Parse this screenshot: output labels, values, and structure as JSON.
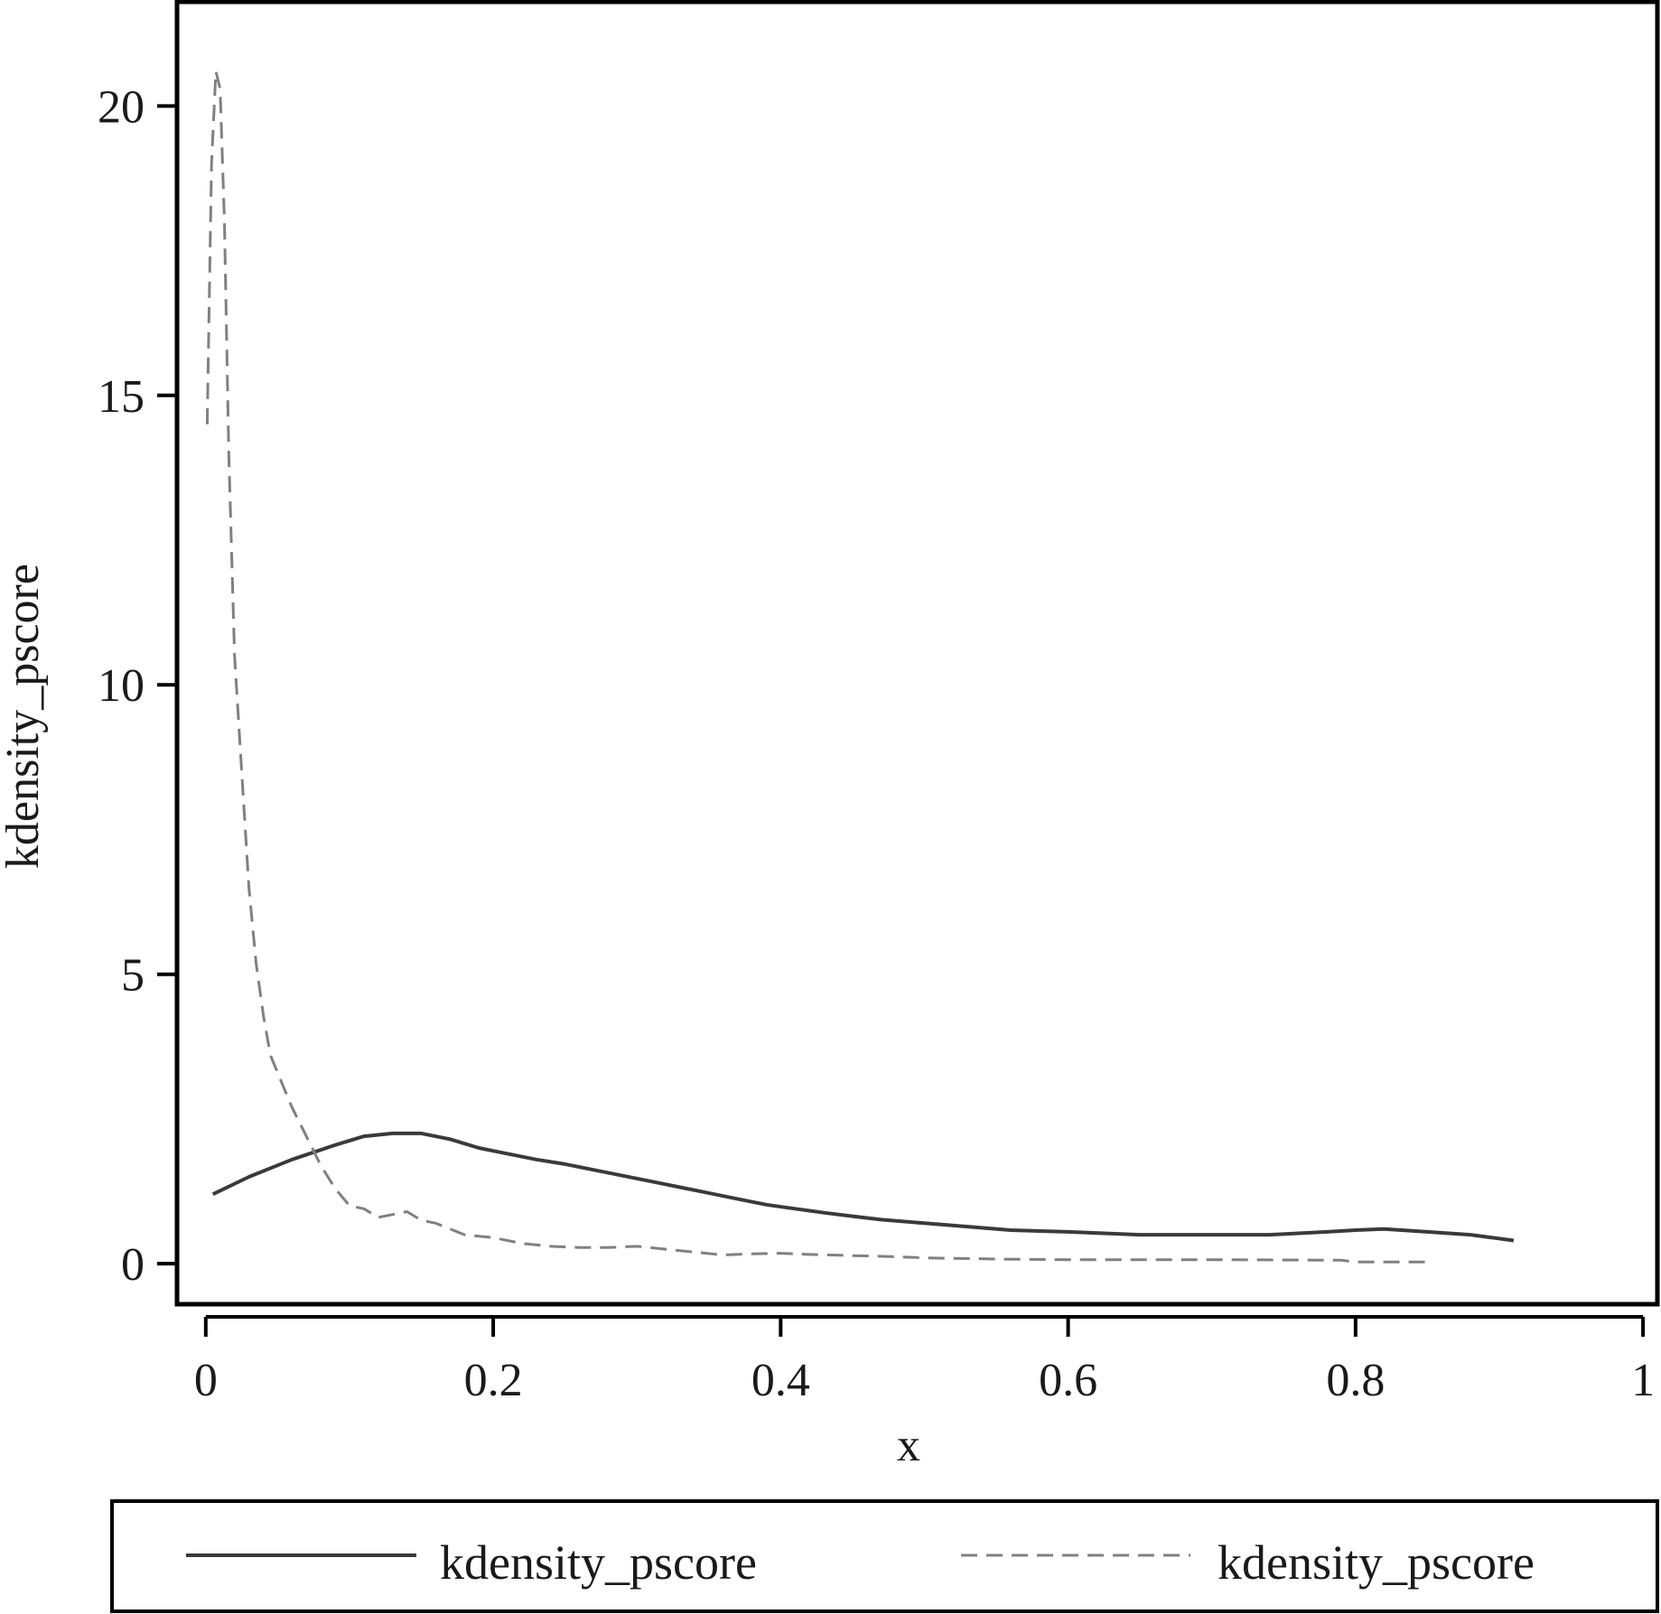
{
  "chart_data": {
    "type": "line",
    "title": "",
    "xlabel": "x",
    "ylabel": "kdensity_pscore",
    "xlim": [
      -0.02,
      1.01
    ],
    "ylim": [
      -0.7,
      21.8
    ],
    "x_ticks": [
      0,
      0.2,
      0.4,
      0.6,
      0.8,
      1
    ],
    "x_tick_labels": [
      "0",
      "0.2",
      "0.4",
      "0.6",
      "0.8",
      "1"
    ],
    "y_ticks": [
      0,
      5,
      10,
      15,
      20
    ],
    "y_tick_labels": [
      "0",
      "5",
      "10",
      "15",
      "20"
    ],
    "grid": false,
    "legend_position": "bottom",
    "series": [
      {
        "name": "kdensity_pscore",
        "color": "#3a3a3a",
        "style": "solid",
        "x": [
          0.005,
          0.03,
          0.06,
          0.09,
          0.11,
          0.13,
          0.15,
          0.17,
          0.19,
          0.21,
          0.23,
          0.25,
          0.27,
          0.29,
          0.31,
          0.33,
          0.35,
          0.37,
          0.39,
          0.41,
          0.43,
          0.45,
          0.47,
          0.5,
          0.53,
          0.56,
          0.6,
          0.65,
          0.7,
          0.74,
          0.78,
          0.8,
          0.82,
          0.85,
          0.88,
          0.91
        ],
        "y": [
          1.2,
          1.5,
          1.8,
          2.05,
          2.2,
          2.25,
          2.25,
          2.15,
          2.0,
          1.9,
          1.8,
          1.72,
          1.62,
          1.52,
          1.42,
          1.32,
          1.22,
          1.12,
          1.02,
          0.95,
          0.88,
          0.82,
          0.76,
          0.7,
          0.64,
          0.58,
          0.55,
          0.5,
          0.5,
          0.5,
          0.55,
          0.58,
          0.6,
          0.55,
          0.5,
          0.4
        ]
      },
      {
        "name": "kdensity_pscore",
        "color": "#808080",
        "style": "dashed",
        "x": [
          0.001,
          0.004,
          0.007,
          0.01,
          0.013,
          0.016,
          0.02,
          0.025,
          0.03,
          0.035,
          0.04,
          0.045,
          0.05,
          0.055,
          0.06,
          0.07,
          0.08,
          0.09,
          0.1,
          0.11,
          0.12,
          0.13,
          0.14,
          0.15,
          0.16,
          0.17,
          0.18,
          0.2,
          0.22,
          0.24,
          0.26,
          0.28,
          0.3,
          0.32,
          0.34,
          0.36,
          0.38,
          0.4,
          0.42,
          0.45,
          0.48,
          0.5,
          0.55,
          0.6,
          0.7,
          0.79,
          0.8,
          0.85
        ],
        "y": [
          14.5,
          19.0,
          20.6,
          20.3,
          18.0,
          14.0,
          10.5,
          8.5,
          6.5,
          5.2,
          4.3,
          3.6,
          3.3,
          3.0,
          2.7,
          2.2,
          1.7,
          1.3,
          1.0,
          0.95,
          0.8,
          0.85,
          0.9,
          0.75,
          0.7,
          0.6,
          0.5,
          0.45,
          0.35,
          0.3,
          0.28,
          0.28,
          0.3,
          0.25,
          0.2,
          0.15,
          0.17,
          0.18,
          0.16,
          0.14,
          0.12,
          0.1,
          0.08,
          0.07,
          0.07,
          0.06,
          0.03,
          0.03
        ]
      }
    ]
  }
}
